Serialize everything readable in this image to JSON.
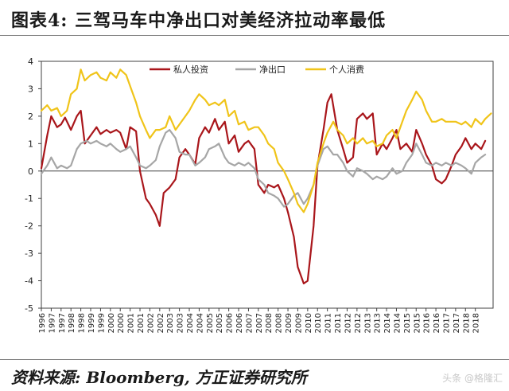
{
  "header": {
    "title": "图表4:   三驾马车中净出口对美经济拉动率最低"
  },
  "footer": {
    "source": "资料来源: Bloomberg, 方正证券研究所",
    "watermark": "头条 @格隆汇"
  },
  "colors": {
    "series_private": "#a9161b",
    "series_net": "#a6a6a6",
    "series_consumption": "#f0c419",
    "axis": "#404040"
  },
  "chart_data": {
    "type": "line",
    "xlim": [
      1996,
      2018.9
    ],
    "ylim": [
      -5,
      4
    ],
    "yticks": [
      -5,
      -4,
      -3,
      -2,
      -1,
      0,
      1,
      2,
      3,
      4
    ],
    "xticks": [
      "1996",
      "1997",
      "1997",
      "1998",
      "1998",
      "1999",
      "1999",
      "2000",
      "2000",
      "2001",
      "2001",
      "2002",
      "2002",
      "2003",
      "2003",
      "2004",
      "2004",
      "2005",
      "2005",
      "2006",
      "2006",
      "2007",
      "2007",
      "2008",
      "2008",
      "2009",
      "2009",
      "2010",
      "2010",
      "2011",
      "2011",
      "2012",
      "2012",
      "2013",
      "2013",
      "2014",
      "2014",
      "2015",
      "2015",
      "2016",
      "2016",
      "2017",
      "2017",
      "2018",
      "2018"
    ],
    "xtick_positions": [
      1996,
      1996.5,
      1997,
      1997.5,
      1998,
      1998.5,
      1999,
      1999.5,
      2000,
      2000.5,
      2001,
      2001.5,
      2002,
      2002.5,
      2003,
      2003.5,
      2004,
      2004.5,
      2005,
      2005.5,
      2006,
      2006.5,
      2007,
      2007.5,
      2008,
      2008.5,
      2009,
      2009.5,
      2010,
      2010.5,
      2011,
      2011.5,
      2012,
      2012.5,
      2013,
      2013.5,
      2014,
      2014.5,
      2015,
      2015.5,
      2016,
      2016.5,
      2017,
      2017.5,
      2018
    ],
    "legend_position": "top",
    "grid": false,
    "series": [
      {
        "name": "私人投资",
        "color": "#a9161b",
        "points": [
          [
            1996.0,
            0.1
          ],
          [
            1996.3,
            1.3
          ],
          [
            1996.5,
            2.0
          ],
          [
            1996.8,
            1.6
          ],
          [
            1997.0,
            1.7
          ],
          [
            1997.2,
            1.95
          ],
          [
            1997.5,
            1.5
          ],
          [
            1997.8,
            2.0
          ],
          [
            1998.0,
            2.2
          ],
          [
            1998.2,
            1.0
          ],
          [
            1998.5,
            1.3
          ],
          [
            1998.8,
            1.6
          ],
          [
            1999.0,
            1.35
          ],
          [
            1999.3,
            1.5
          ],
          [
            1999.5,
            1.4
          ],
          [
            1999.8,
            1.5
          ],
          [
            2000.0,
            1.4
          ],
          [
            2000.3,
            0.8
          ],
          [
            2000.5,
            1.6
          ],
          [
            2000.8,
            1.45
          ],
          [
            2001.0,
            0.0
          ],
          [
            2001.3,
            -1.0
          ],
          [
            2001.5,
            -1.2
          ],
          [
            2001.8,
            -1.6
          ],
          [
            2002.0,
            -2.0
          ],
          [
            2002.2,
            -0.8
          ],
          [
            2002.5,
            -0.6
          ],
          [
            2002.8,
            -0.3
          ],
          [
            2003.0,
            0.5
          ],
          [
            2003.3,
            0.8
          ],
          [
            2003.5,
            0.6
          ],
          [
            2003.8,
            0.25
          ],
          [
            2004.0,
            1.2
          ],
          [
            2004.3,
            1.6
          ],
          [
            2004.5,
            1.4
          ],
          [
            2004.8,
            1.9
          ],
          [
            2005.0,
            1.5
          ],
          [
            2005.3,
            1.8
          ],
          [
            2005.5,
            1.0
          ],
          [
            2005.8,
            1.3
          ],
          [
            2006.0,
            0.7
          ],
          [
            2006.3,
            1.0
          ],
          [
            2006.5,
            1.1
          ],
          [
            2006.8,
            0.8
          ],
          [
            2007.0,
            -0.5
          ],
          [
            2007.3,
            -0.8
          ],
          [
            2007.5,
            -0.5
          ],
          [
            2007.8,
            -0.6
          ],
          [
            2008.0,
            -0.5
          ],
          [
            2008.3,
            -1.0
          ],
          [
            2008.5,
            -1.5
          ],
          [
            2008.8,
            -2.4
          ],
          [
            2009.0,
            -3.5
          ],
          [
            2009.3,
            -4.1
          ],
          [
            2009.5,
            -4.0
          ],
          [
            2009.8,
            -2.0
          ],
          [
            2010.0,
            0.2
          ],
          [
            2010.3,
            1.5
          ],
          [
            2010.5,
            2.5
          ],
          [
            2010.7,
            2.8
          ],
          [
            2011.0,
            1.5
          ],
          [
            2011.3,
            0.8
          ],
          [
            2011.5,
            0.3
          ],
          [
            2011.8,
            0.5
          ],
          [
            2012.0,
            1.9
          ],
          [
            2012.3,
            2.1
          ],
          [
            2012.5,
            1.9
          ],
          [
            2012.8,
            2.1
          ],
          [
            2013.0,
            0.6
          ],
          [
            2013.3,
            1.0
          ],
          [
            2013.5,
            0.8
          ],
          [
            2013.8,
            1.2
          ],
          [
            2014.0,
            1.5
          ],
          [
            2014.2,
            0.8
          ],
          [
            2014.5,
            1.0
          ],
          [
            2014.8,
            0.7
          ],
          [
            2015.0,
            1.5
          ],
          [
            2015.3,
            1.0
          ],
          [
            2015.5,
            0.6
          ],
          [
            2015.8,
            0.2
          ],
          [
            2016.0,
            -0.3
          ],
          [
            2016.3,
            -0.45
          ],
          [
            2016.5,
            -0.3
          ],
          [
            2016.8,
            0.2
          ],
          [
            2017.0,
            0.6
          ],
          [
            2017.3,
            0.9
          ],
          [
            2017.5,
            1.2
          ],
          [
            2017.8,
            0.8
          ],
          [
            2018.0,
            1.0
          ],
          [
            2018.3,
            0.8
          ],
          [
            2018.5,
            1.1
          ]
        ]
      },
      {
        "name": "净出口",
        "color": "#a6a6a6",
        "points": [
          [
            1996.0,
            -0.1
          ],
          [
            1996.3,
            0.2
          ],
          [
            1996.5,
            0.5
          ],
          [
            1996.8,
            0.1
          ],
          [
            1997.0,
            0.2
          ],
          [
            1997.3,
            0.1
          ],
          [
            1997.5,
            0.2
          ],
          [
            1997.8,
            0.8
          ],
          [
            1998.0,
            1.0
          ],
          [
            1998.3,
            1.1
          ],
          [
            1998.5,
            1.0
          ],
          [
            1998.8,
            1.1
          ],
          [
            1999.0,
            1.0
          ],
          [
            1999.3,
            0.9
          ],
          [
            1999.5,
            1.0
          ],
          [
            1999.8,
            0.8
          ],
          [
            2000.0,
            0.7
          ],
          [
            2000.3,
            0.8
          ],
          [
            2000.5,
            0.9
          ],
          [
            2000.8,
            0.5
          ],
          [
            2001.0,
            0.2
          ],
          [
            2001.3,
            0.1
          ],
          [
            2001.5,
            0.2
          ],
          [
            2001.8,
            0.4
          ],
          [
            2002.0,
            0.9
          ],
          [
            2002.3,
            1.4
          ],
          [
            2002.5,
            1.5
          ],
          [
            2002.8,
            1.2
          ],
          [
            2003.0,
            0.7
          ],
          [
            2003.3,
            0.6
          ],
          [
            2003.5,
            0.6
          ],
          [
            2003.8,
            0.2
          ],
          [
            2004.0,
            0.3
          ],
          [
            2004.3,
            0.5
          ],
          [
            2004.5,
            0.8
          ],
          [
            2004.8,
            0.9
          ],
          [
            2005.0,
            1.0
          ],
          [
            2005.3,
            0.5
          ],
          [
            2005.5,
            0.3
          ],
          [
            2005.8,
            0.2
          ],
          [
            2006.0,
            0.3
          ],
          [
            2006.3,
            0.2
          ],
          [
            2006.5,
            0.3
          ],
          [
            2006.8,
            0.1
          ],
          [
            2007.0,
            -0.3
          ],
          [
            2007.3,
            -0.5
          ],
          [
            2007.5,
            -0.8
          ],
          [
            2007.8,
            -0.9
          ],
          [
            2008.0,
            -1.0
          ],
          [
            2008.3,
            -1.3
          ],
          [
            2008.5,
            -1.2
          ],
          [
            2008.8,
            -0.9
          ],
          [
            2009.0,
            -0.8
          ],
          [
            2009.3,
            -1.2
          ],
          [
            2009.5,
            -1.0
          ],
          [
            2009.8,
            -0.5
          ],
          [
            2010.0,
            0.2
          ],
          [
            2010.3,
            0.8
          ],
          [
            2010.5,
            0.9
          ],
          [
            2010.8,
            0.6
          ],
          [
            2011.0,
            0.6
          ],
          [
            2011.3,
            0.3
          ],
          [
            2011.5,
            0.0
          ],
          [
            2011.8,
            -0.2
          ],
          [
            2012.0,
            0.1
          ],
          [
            2012.3,
            0.0
          ],
          [
            2012.5,
            -0.1
          ],
          [
            2012.8,
            -0.3
          ],
          [
            2013.0,
            -0.2
          ],
          [
            2013.3,
            -0.3
          ],
          [
            2013.5,
            -0.2
          ],
          [
            2013.8,
            0.1
          ],
          [
            2014.0,
            -0.1
          ],
          [
            2014.3,
            0.0
          ],
          [
            2014.5,
            0.3
          ],
          [
            2014.8,
            0.6
          ],
          [
            2015.0,
            1.0
          ],
          [
            2015.3,
            0.6
          ],
          [
            2015.5,
            0.3
          ],
          [
            2015.8,
            0.2
          ],
          [
            2016.0,
            0.3
          ],
          [
            2016.3,
            0.2
          ],
          [
            2016.5,
            0.3
          ],
          [
            2016.8,
            0.2
          ],
          [
            2017.0,
            0.3
          ],
          [
            2017.3,
            0.2
          ],
          [
            2017.5,
            0.1
          ],
          [
            2017.8,
            -0.1
          ],
          [
            2018.0,
            0.3
          ],
          [
            2018.3,
            0.5
          ],
          [
            2018.5,
            0.6
          ]
        ]
      },
      {
        "name": "个人消费",
        "color": "#f0c419",
        "points": [
          [
            1996.0,
            2.2
          ],
          [
            1996.3,
            2.4
          ],
          [
            1996.5,
            2.2
          ],
          [
            1996.8,
            2.3
          ],
          [
            1997.0,
            2.0
          ],
          [
            1997.3,
            2.2
          ],
          [
            1997.5,
            2.8
          ],
          [
            1997.8,
            3.0
          ],
          [
            1998.0,
            3.7
          ],
          [
            1998.2,
            3.3
          ],
          [
            1998.5,
            3.5
          ],
          [
            1998.8,
            3.6
          ],
          [
            1999.0,
            3.4
          ],
          [
            1999.3,
            3.3
          ],
          [
            1999.5,
            3.6
          ],
          [
            1999.8,
            3.4
          ],
          [
            2000.0,
            3.7
          ],
          [
            2000.3,
            3.5
          ],
          [
            2000.5,
            3.1
          ],
          [
            2000.8,
            2.5
          ],
          [
            2001.0,
            2.0
          ],
          [
            2001.3,
            1.5
          ],
          [
            2001.5,
            1.2
          ],
          [
            2001.8,
            1.5
          ],
          [
            2002.0,
            1.5
          ],
          [
            2002.3,
            1.6
          ],
          [
            2002.5,
            2.0
          ],
          [
            2002.8,
            1.5
          ],
          [
            2003.0,
            1.7
          ],
          [
            2003.3,
            2.0
          ],
          [
            2003.5,
            2.2
          ],
          [
            2003.8,
            2.6
          ],
          [
            2004.0,
            2.8
          ],
          [
            2004.3,
            2.6
          ],
          [
            2004.5,
            2.4
          ],
          [
            2004.8,
            2.5
          ],
          [
            2005.0,
            2.4
          ],
          [
            2005.3,
            2.6
          ],
          [
            2005.5,
            2.0
          ],
          [
            2005.8,
            2.2
          ],
          [
            2006.0,
            1.7
          ],
          [
            2006.3,
            1.8
          ],
          [
            2006.5,
            1.5
          ],
          [
            2006.8,
            1.6
          ],
          [
            2007.0,
            1.6
          ],
          [
            2007.3,
            1.3
          ],
          [
            2007.5,
            1.0
          ],
          [
            2007.8,
            0.8
          ],
          [
            2008.0,
            0.3
          ],
          [
            2008.3,
            0.0
          ],
          [
            2008.5,
            -0.3
          ],
          [
            2008.8,
            -0.8
          ],
          [
            2009.0,
            -1.2
          ],
          [
            2009.3,
            -1.5
          ],
          [
            2009.5,
            -1.2
          ],
          [
            2009.8,
            -0.5
          ],
          [
            2010.0,
            0.3
          ],
          [
            2010.3,
            1.0
          ],
          [
            2010.5,
            1.4
          ],
          [
            2010.8,
            1.8
          ],
          [
            2011.0,
            1.5
          ],
          [
            2011.3,
            1.3
          ],
          [
            2011.5,
            1.0
          ],
          [
            2011.8,
            1.2
          ],
          [
            2012.0,
            1.0
          ],
          [
            2012.3,
            1.2
          ],
          [
            2012.5,
            1.0
          ],
          [
            2012.8,
            1.1
          ],
          [
            2013.0,
            0.9
          ],
          [
            2013.3,
            1.0
          ],
          [
            2013.5,
            1.3
          ],
          [
            2013.8,
            1.5
          ],
          [
            2014.0,
            1.2
          ],
          [
            2014.3,
            1.8
          ],
          [
            2014.5,
            2.2
          ],
          [
            2014.8,
            2.6
          ],
          [
            2015.0,
            2.9
          ],
          [
            2015.3,
            2.6
          ],
          [
            2015.5,
            2.2
          ],
          [
            2015.8,
            1.8
          ],
          [
            2016.0,
            1.8
          ],
          [
            2016.3,
            1.9
          ],
          [
            2016.5,
            1.8
          ],
          [
            2016.8,
            1.8
          ],
          [
            2017.0,
            1.8
          ],
          [
            2017.3,
            1.7
          ],
          [
            2017.5,
            1.8
          ],
          [
            2017.8,
            1.6
          ],
          [
            2018.0,
            1.9
          ],
          [
            2018.3,
            1.7
          ],
          [
            2018.5,
            1.9
          ],
          [
            2018.8,
            2.1
          ]
        ]
      }
    ]
  }
}
